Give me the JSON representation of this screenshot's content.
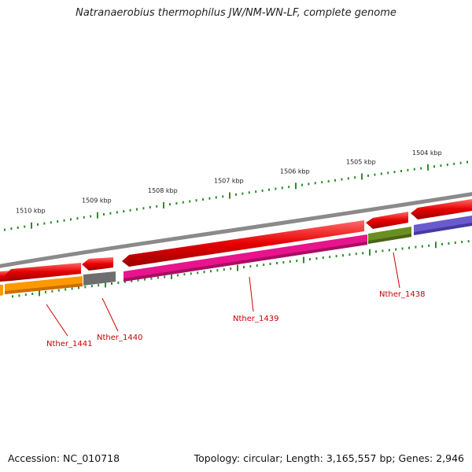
{
  "title": "Natranaerobius thermophilus JW/NM-WN-LF, complete genome",
  "footer": {
    "accession": "Accession: NC_010718",
    "summary": "Topology: circular; Length: 3,165,557 bp; Genes: 2,946"
  },
  "ticks": [
    {
      "label": "1510 kbp"
    },
    {
      "label": "1509 kbp"
    },
    {
      "label": "1508 kbp"
    },
    {
      "label": "1507 kbp"
    },
    {
      "label": "1506 kbp"
    },
    {
      "label": "1505 kbp"
    },
    {
      "label": "1504 kbp"
    }
  ],
  "genes": [
    {
      "label": "Nther_1441"
    },
    {
      "label": "Nther_1440"
    },
    {
      "label": "Nther_1439"
    },
    {
      "label": "Nther_1438"
    }
  ],
  "colors": {
    "backbone": "#8a8a8a",
    "cds": "#e60000",
    "tick": "#2e8b2e",
    "label": "#cc0000",
    "gene_1441": "#ff9900",
    "gene_1440": "#6e6e6e",
    "gene_1439": "#e8148c",
    "gene_1438": "#6b8e23",
    "gene_next": "#6a5acd"
  }
}
